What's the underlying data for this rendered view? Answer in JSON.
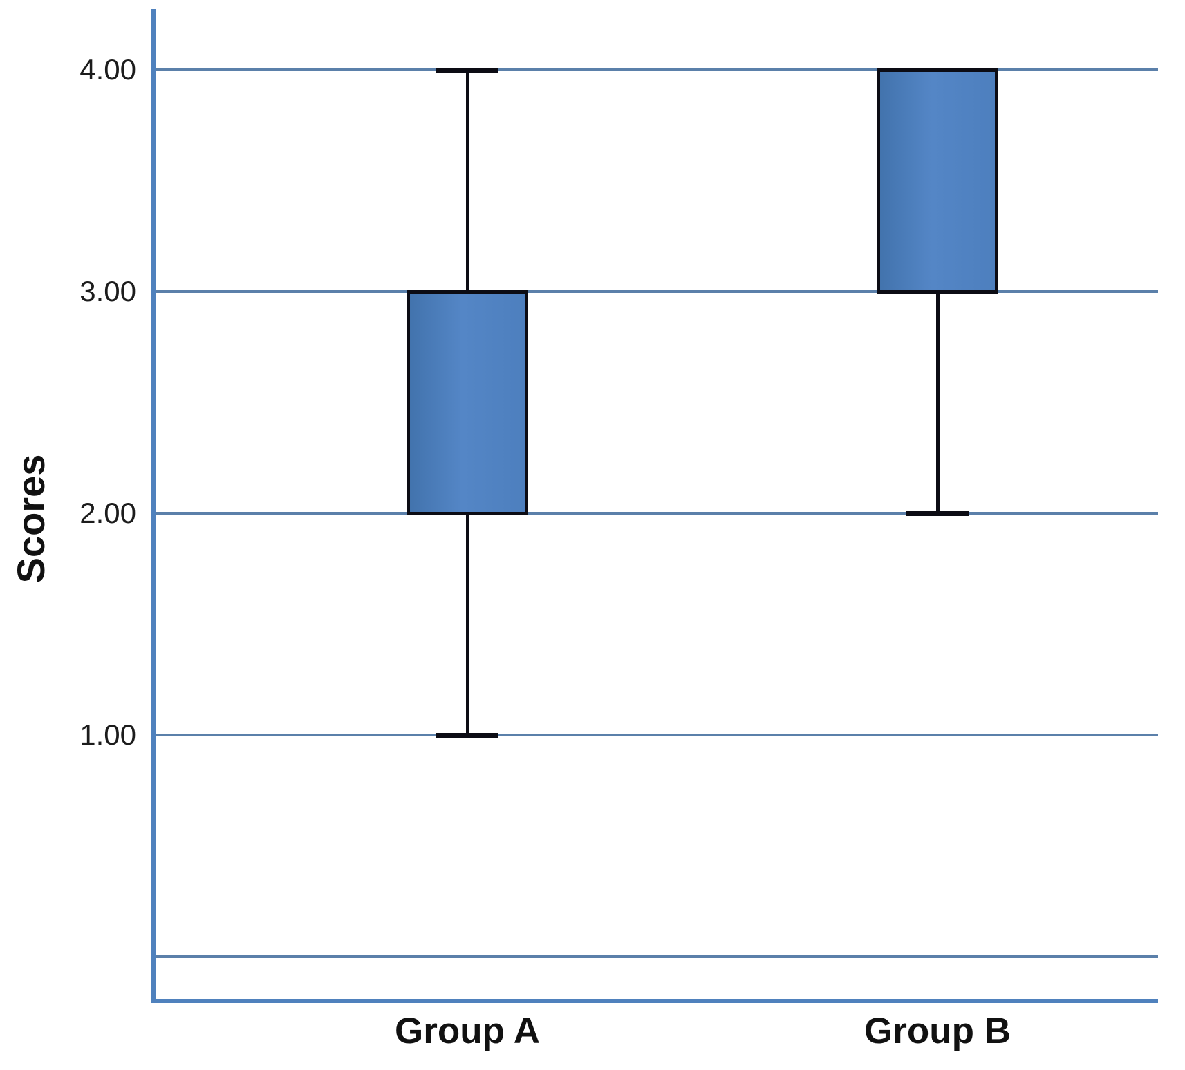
{
  "chart_data": {
    "type": "boxplot",
    "title": "",
    "xlabel": "",
    "ylabel": "Scores",
    "categories": [
      "Group A",
      "Group B"
    ],
    "yticks": [
      {
        "value": 0.0,
        "label": ""
      },
      {
        "value": 1.0,
        "label": "1.00"
      },
      {
        "value": 2.0,
        "label": "2.00"
      },
      {
        "value": 3.0,
        "label": "3.00"
      },
      {
        "value": 4.0,
        "label": "4.00"
      }
    ],
    "ylim": [
      -0.2,
      4.27
    ],
    "grid": true,
    "legend": false,
    "series": [
      {
        "name": "Group A",
        "q1": 2.0,
        "q3": 3.0,
        "whisker_low": 1.0,
        "whisker_high": 4.0
      },
      {
        "name": "Group B",
        "q1": 3.0,
        "q3": 4.0,
        "whisker_low": 2.0,
        "whisker_high": 4.0
      }
    ],
    "colors": {
      "box_fill": "#4d7fbe",
      "box_fill_light": "#5486c6",
      "box_fill_dark": "#4273ad",
      "box_border": "#0c0c14",
      "whisker": "#0c0c14",
      "axis": "#4f81bd",
      "gridline": "#5b80aa",
      "text": "#1c1c1c"
    }
  }
}
